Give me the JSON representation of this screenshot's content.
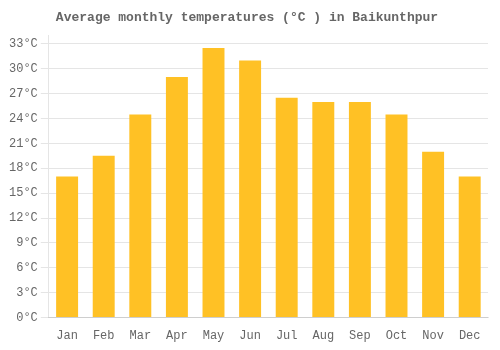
{
  "chart_data": {
    "type": "bar",
    "title": "Average monthly temperatures (°C ) in Baikunthpur",
    "categories": [
      "Jan",
      "Feb",
      "Mar",
      "Apr",
      "May",
      "Jun",
      "Jul",
      "Aug",
      "Sep",
      "Oct",
      "Nov",
      "Dec"
    ],
    "values": [
      17.0,
      19.5,
      24.5,
      29.0,
      32.5,
      31.0,
      26.5,
      26.0,
      26.0,
      24.5,
      20.0,
      17.0
    ],
    "color": "#FFC125",
    "ylim": [
      0,
      34
    ],
    "yticks": [
      {
        "value": 0,
        "label": "0°C"
      },
      {
        "value": 3,
        "label": "3°C"
      },
      {
        "value": 6,
        "label": "6°C"
      },
      {
        "value": 9,
        "label": "9°C"
      },
      {
        "value": 12,
        "label": "12°C"
      },
      {
        "value": 15,
        "label": "15°C"
      },
      {
        "value": 18,
        "label": "18°C"
      },
      {
        "value": 21,
        "label": "21°C"
      },
      {
        "value": 24,
        "label": "24°C"
      },
      {
        "value": 27,
        "label": "27°C"
      },
      {
        "value": 30,
        "label": "30°C"
      },
      {
        "value": 33,
        "label": "33°C"
      }
    ],
    "grid": true
  }
}
